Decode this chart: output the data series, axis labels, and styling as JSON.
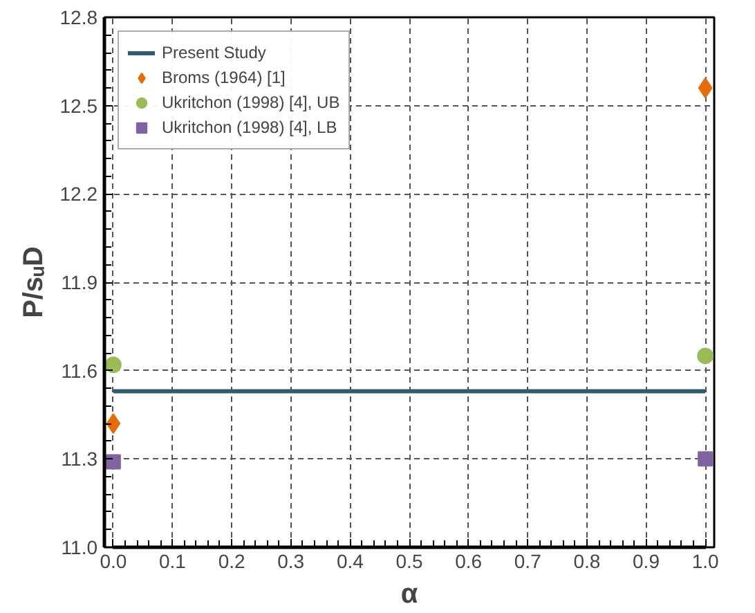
{
  "chart_data": {
    "type": "scatter",
    "xlabel": "α",
    "ylabel": "P/sᵤD",
    "xlim": [
      0,
      1
    ],
    "xticks": [
      {
        "value": 0,
        "label": "0.0"
      },
      0.1,
      0.2,
      0.3,
      0.4,
      0.5,
      0.6,
      0.7,
      0.8,
      0.9,
      {
        "value": 1,
        "label": "1.0"
      }
    ],
    "ylim": [
      11.0,
      12.8
    ],
    "yticks": [
      {
        "value": 11.0,
        "label": "11.0"
      },
      11.3,
      11.6,
      11.9,
      12.2,
      12.5,
      12.8
    ],
    "grid": true,
    "legend": "top left",
    "x": [
      0,
      1
    ],
    "series": [
      {
        "name": "Present Study",
        "type": "line",
        "marker": "none",
        "line_style": "solid",
        "color": "#2e5d6b",
        "values": [
          11.53,
          11.53
        ]
      },
      {
        "name": "Broms (1964) [1]",
        "marker": "diamond",
        "color": "#e46c0a",
        "values": [
          11.42,
          12.56
        ]
      },
      {
        "name": "Ukritchon (1998) [4], UB",
        "marker": "circle",
        "color": "#9bbb59",
        "values": [
          11.62,
          11.65
        ]
      },
      {
        "name": "Ukritchon (1998) [4], LB",
        "marker": "square",
        "color": "#8064a2",
        "values": [
          11.29,
          11.3
        ]
      }
    ]
  }
}
